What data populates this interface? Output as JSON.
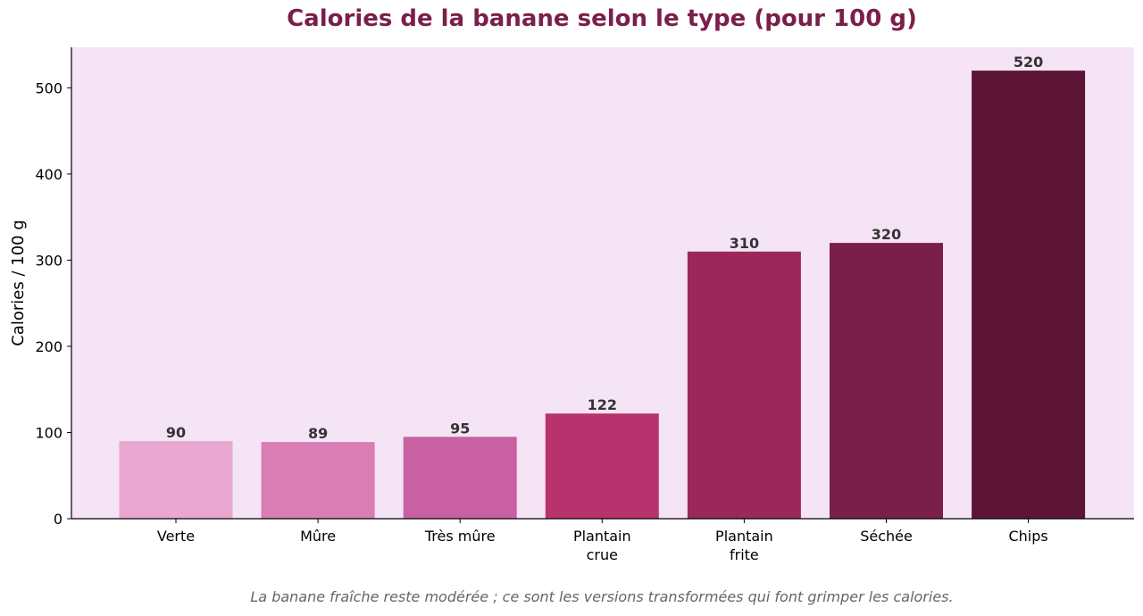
{
  "chart_data": {
    "type": "bar",
    "title": "Calories de la banane selon le type (pour 100 g)",
    "ylabel": "Calories / 100 g",
    "xlabel": "",
    "categories": [
      [
        "Verte"
      ],
      [
        "Mûre"
      ],
      [
        "Très mûre"
      ],
      [
        "Plantain",
        "crue"
      ],
      [
        "Plantain",
        "frite"
      ],
      [
        "Séchée"
      ],
      [
        "Chips"
      ]
    ],
    "values": [
      90,
      89,
      95,
      122,
      310,
      320,
      520
    ],
    "value_labels": [
      "90",
      "89",
      "95",
      "122",
      "310",
      "320",
      "520"
    ],
    "colors": [
      "#e8a8d0",
      "#d97db5",
      "#c860a2",
      "#b8336e",
      "#9a2858",
      "#7a1f48",
      "#5c1535"
    ],
    "ylim": [
      0,
      547
    ],
    "yticks": [
      0,
      100,
      200,
      300,
      400,
      500
    ],
    "ytick_labels": [
      "0",
      "100",
      "200",
      "300",
      "400",
      "500"
    ],
    "grid": false,
    "legend": "none",
    "note": "La banane fraîche reste modérée ; ce sont les versions transformées qui font grimper les calories."
  },
  "style": {
    "plot_background": "#f5e4f5",
    "title_color": "#7a1f4a",
    "axis_color": "#000000",
    "value_label_color": "#333333",
    "note_color": "#666666"
  }
}
